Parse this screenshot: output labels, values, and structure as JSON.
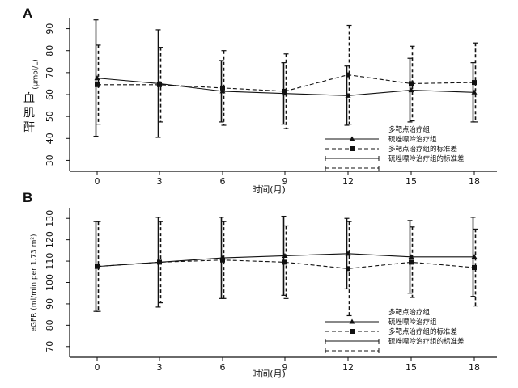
{
  "chart_data": [
    {
      "type": "line",
      "panel_label": "A",
      "x": [
        0,
        3,
        6,
        9,
        12,
        15,
        18
      ],
      "xlabel": "时间(月)",
      "ylabel_main": "血肌酐",
      "ylabel_unit": "(μmol/L)",
      "ylim": [
        25,
        95
      ],
      "yticks": [
        30,
        40,
        50,
        60,
        70,
        80,
        90
      ],
      "series": [
        {
          "name": "多靶点治疗组",
          "mean": [
            67.5,
            65,
            61.5,
            60.5,
            59.5,
            62,
            61
          ],
          "sd": [
            26.5,
            24.5,
            14,
            14,
            13.5,
            14.5,
            13.5
          ]
        },
        {
          "name": "硫唑嘌呤治疗组",
          "mean": [
            64.5,
            64.5,
            63,
            61.5,
            69,
            65,
            65.5
          ],
          "sd": [
            18,
            17,
            17,
            17,
            22.5,
            17,
            18
          ]
        }
      ],
      "legend": [
        "多靶点治疗组",
        "硫唑嘌呤治疗组",
        "多靶点治疗组的标准差",
        "硫唑嘌呤治疗组的标准差"
      ],
      "legend_position": "bottom-right"
    },
    {
      "type": "line",
      "panel_label": "B",
      "x": [
        0,
        3,
        6,
        9,
        12,
        15,
        18
      ],
      "xlabel": "时间(月)",
      "ylabel": "eGFR (ml/min per 1.73 m²)",
      "ylim": [
        65,
        135
      ],
      "yticks": [
        70,
        80,
        90,
        100,
        110,
        120,
        130
      ],
      "series": [
        {
          "name": "多靶点治疗组",
          "mean": [
            107.5,
            109.5,
            111.5,
            112.5,
            113.5,
            112,
            112
          ],
          "sd": [
            21,
            21,
            19,
            18.5,
            16.5,
            17,
            18.5
          ]
        },
        {
          "name": "硫唑嘌呤治疗组",
          "mean": [
            107.5,
            109.5,
            110.5,
            109.5,
            106.5,
            109.5,
            107
          ],
          "sd": [
            21,
            19,
            18,
            17,
            22,
            16.5,
            18
          ]
        }
      ],
      "legend": [
        "多靶点治疗组",
        "硫唑嘌呤治疗组",
        "多靶点治疗组的标准差",
        "硫唑嘌呤治疗组的标准差"
      ],
      "legend_position": "bottom-right"
    }
  ]
}
